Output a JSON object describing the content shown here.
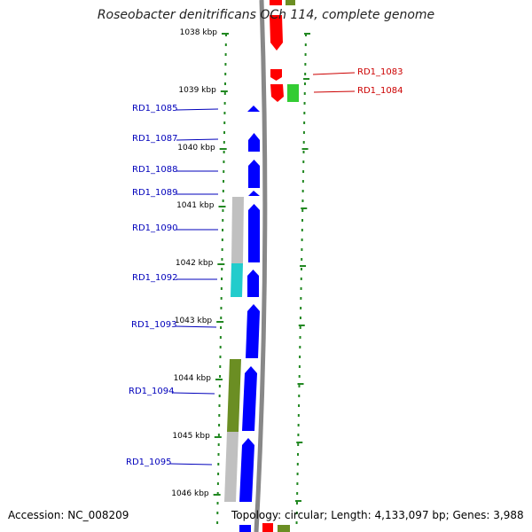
{
  "title": "Roseobacter denitrificans OCh 114, complete genome",
  "scale": {
    "unit": "kbp",
    "ticks": [
      "1038 kbp",
      "1039 kbp",
      "1040 kbp",
      "1041 kbp",
      "1042 kbp",
      "1043 kbp",
      "1044 kbp",
      "1045 kbp",
      "1046 kbp"
    ]
  },
  "genes": [
    {
      "id": "RD1_1083",
      "color": "#cc0000",
      "strand": "reverse",
      "fill": "#ff0000"
    },
    {
      "id": "RD1_1084",
      "color": "#cc0000",
      "strand": "reverse",
      "fill": "#22bb22"
    },
    {
      "id": "RD1_1085",
      "color": "#0000bb",
      "strand": "forward",
      "fill": "#0000ff"
    },
    {
      "id": "RD1_1087",
      "color": "#0000bb",
      "strand": "forward",
      "fill": "#0000ff"
    },
    {
      "id": "RD1_1088",
      "color": "#0000bb",
      "strand": "forward",
      "fill": "#0000ff"
    },
    {
      "id": "RD1_1089",
      "color": "#0000bb",
      "strand": "forward",
      "fill": "#0000ff"
    },
    {
      "id": "RD1_1090",
      "color": "#0000bb",
      "strand": "forward",
      "fill": "#0000ff"
    },
    {
      "id": "RD1_1092",
      "color": "#0000bb",
      "strand": "forward",
      "fill": "#0000ff"
    },
    {
      "id": "RD1_1093",
      "color": "#0000bb",
      "strand": "forward",
      "fill": "#0000ff"
    },
    {
      "id": "RD1_1094",
      "color": "#0000bb",
      "strand": "forward",
      "fill": "#0000ff"
    },
    {
      "id": "RD1_1095",
      "color": "#0000bb",
      "strand": "forward",
      "fill": "#0000ff"
    }
  ],
  "colors": {
    "forward_cds": "#0000ff",
    "reverse_cds": "#ff0000",
    "cog_gray": "#c0c0c0",
    "cog_cyan": "#22cccc",
    "cog_olive": "#6b8e23",
    "cog_green": "#33cc33",
    "backbone": "#888888",
    "dots": "#228822",
    "forward_label": "#0000bb",
    "reverse_label": "#cc0000"
  },
  "footer": {
    "accession": "Accession: NC_008209",
    "summary": "Topology: circular; Length: 4,133,097 bp; Genes: 3,988"
  }
}
